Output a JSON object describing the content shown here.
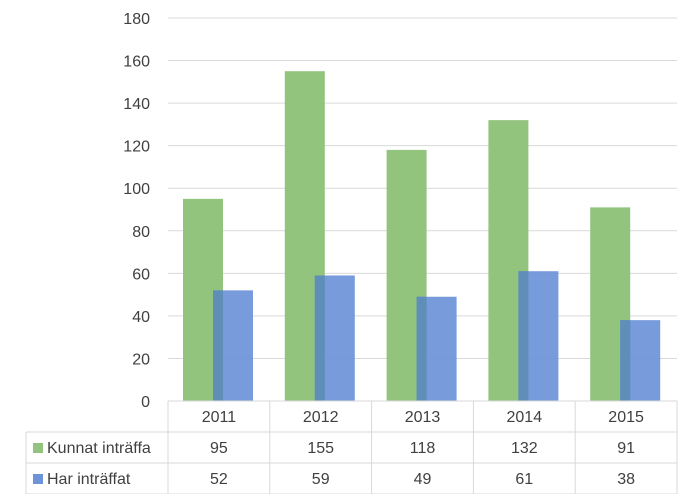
{
  "chart_data": {
    "type": "bar",
    "categories": [
      "2011",
      "2012",
      "2013",
      "2014",
      "2015"
    ],
    "series": [
      {
        "name": "Kunnat inträffa",
        "values": [
          95,
          155,
          118,
          132,
          91
        ],
        "color": "#93c47d"
      },
      {
        "name": "Har inträffat",
        "values": [
          52,
          59,
          49,
          61,
          38
        ],
        "color": "#6d93d8"
      }
    ],
    "yticks": [
      "0",
      "20",
      "40",
      "60",
      "80",
      "100",
      "120",
      "140",
      "160",
      "180"
    ],
    "ylim": [
      0,
      180
    ],
    "grid": true,
    "legend": "data-table-left",
    "overlap_color": "#5f8fb8"
  }
}
